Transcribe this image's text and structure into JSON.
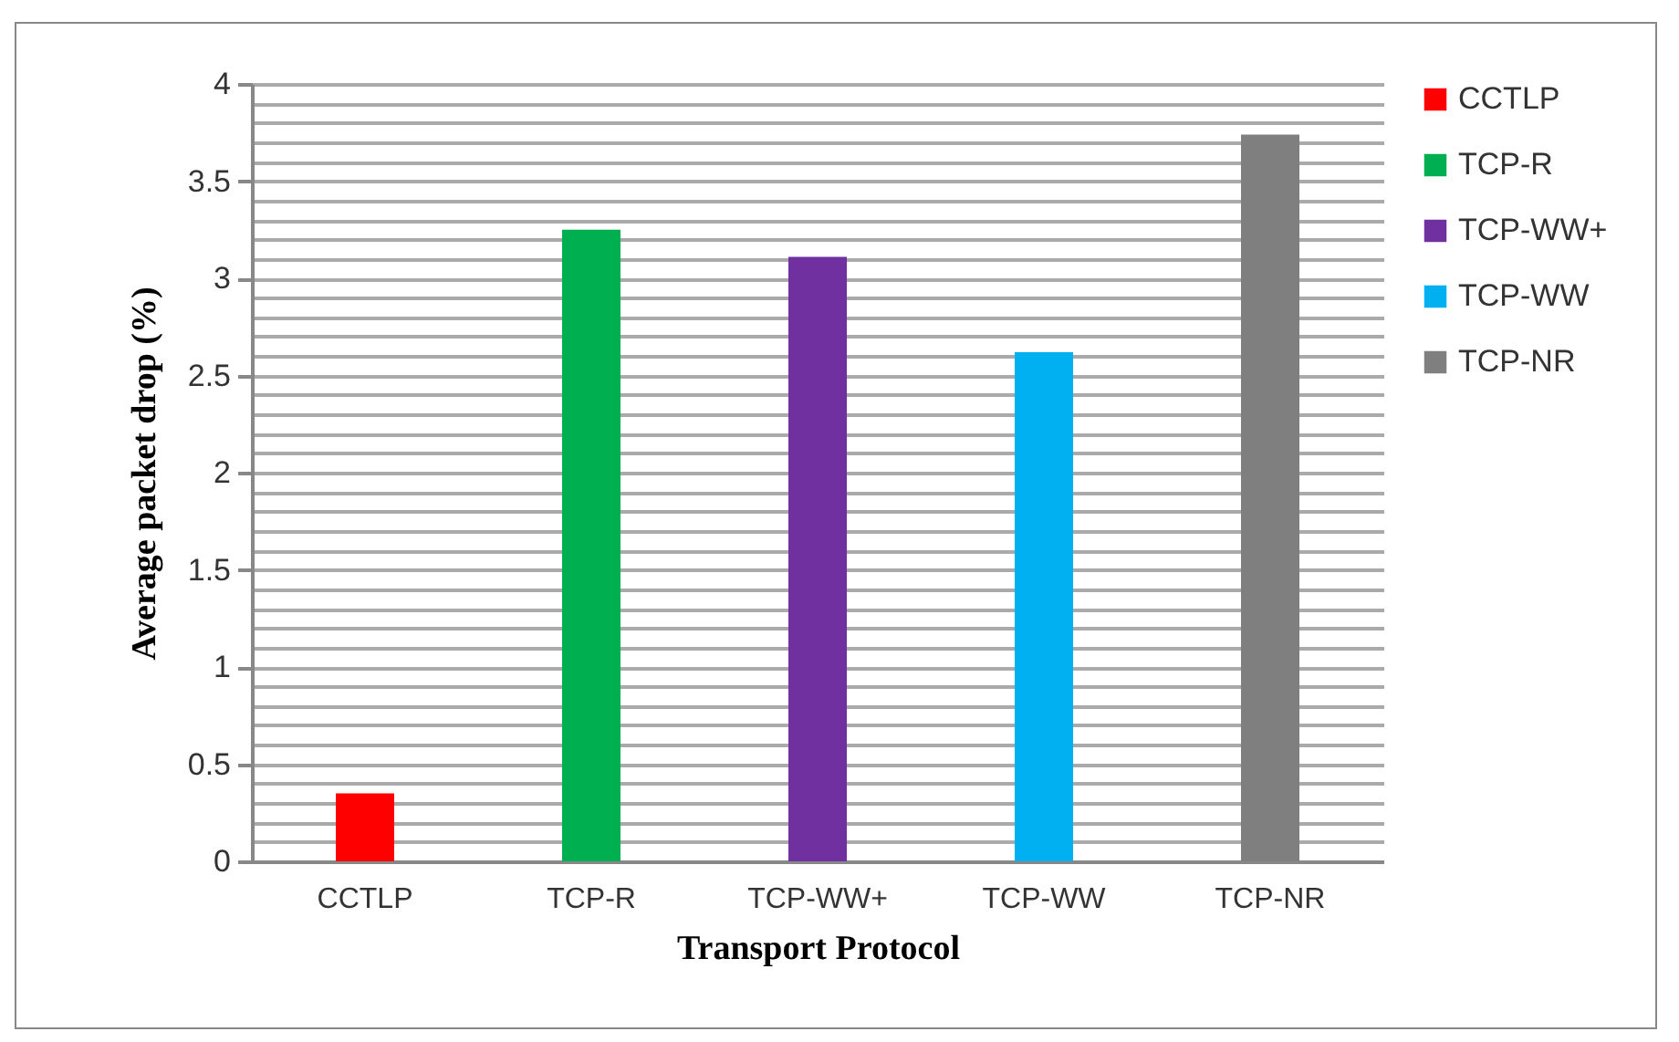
{
  "chart_data": {
    "type": "bar",
    "xlabel": "Transport  Protocol",
    "ylabel": "Average packet drop  (%)",
    "categories": [
      "CCTLP",
      "TCP-R",
      "TCP-WW+",
      "TCP-WW",
      "TCP-NR"
    ],
    "stacked": true,
    "series": [
      {
        "name": "CCTLP",
        "color": "#ff0000",
        "values": [
          0.35,
          null,
          null,
          null,
          null
        ]
      },
      {
        "name": "TCP-R",
        "color": "#00b050",
        "values": [
          null,
          3.25,
          null,
          null,
          null
        ]
      },
      {
        "name": "TCP-WW+",
        "color": "#7030a0",
        "values": [
          null,
          null,
          3.11,
          null,
          null
        ]
      },
      {
        "name": "TCP-WW",
        "color": "#00b0f0",
        "values": [
          null,
          null,
          null,
          2.62,
          null
        ]
      },
      {
        "name": "TCP-NR",
        "color": "#7f7f7f",
        "values": [
          null,
          null,
          null,
          null,
          3.74
        ]
      }
    ],
    "ylim": [
      0,
      4
    ],
    "yticks": [
      0,
      {
        "value": 0.1,
        "label": null
      },
      {
        "value": 0.2,
        "label": null
      },
      {
        "value": 0.3,
        "label": null
      },
      {
        "value": 0.4,
        "label": null
      },
      0.5,
      {
        "value": 0.6,
        "label": null
      },
      {
        "value": 0.7,
        "label": null
      },
      {
        "value": 0.8,
        "label": null
      },
      {
        "value": 0.9,
        "label": null
      },
      1,
      {
        "value": 1.1,
        "label": null
      },
      {
        "value": 1.2,
        "label": null
      },
      {
        "value": 1.3,
        "label": null
      },
      {
        "value": 1.4,
        "label": null
      },
      1.5,
      {
        "value": 1.6,
        "label": null
      },
      {
        "value": 1.7,
        "label": null
      },
      {
        "value": 1.8,
        "label": null
      },
      {
        "value": 1.9,
        "label": null
      },
      2,
      {
        "value": 2.1,
        "label": null
      },
      {
        "value": 2.2,
        "label": null
      },
      {
        "value": 2.3,
        "label": null
      },
      {
        "value": 2.4,
        "label": null
      },
      2.5,
      {
        "value": 2.6,
        "label": null
      },
      {
        "value": 2.7,
        "label": null
      },
      {
        "value": 2.8,
        "label": null
      },
      {
        "value": 2.9,
        "label": null
      },
      3,
      {
        "value": 3.1,
        "label": null
      },
      {
        "value": 3.2,
        "label": null
      },
      {
        "value": 3.3,
        "label": null
      },
      {
        "value": 3.4,
        "label": null
      },
      3.5,
      {
        "value": 3.6,
        "label": null
      },
      {
        "value": 3.7,
        "label": null
      },
      {
        "value": 3.8,
        "label": null
      },
      {
        "value": 3.9,
        "label": null
      },
      4
    ],
    "grid": true,
    "legend": "right"
  }
}
